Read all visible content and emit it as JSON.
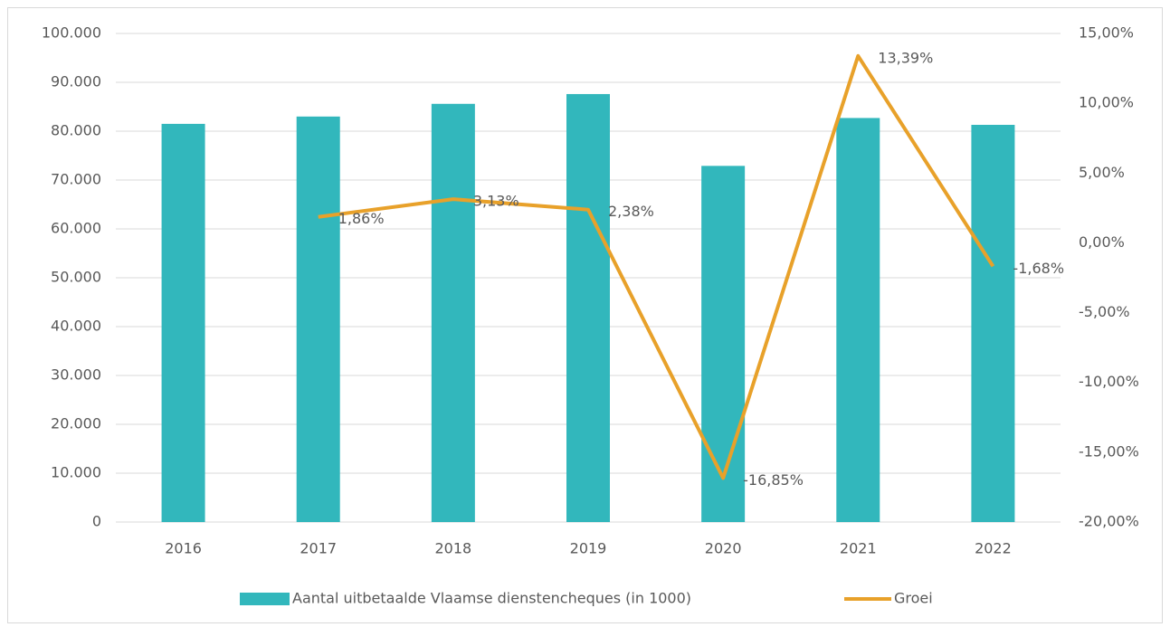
{
  "chart_data": {
    "type": "bar",
    "categories": [
      "2016",
      "2017",
      "2018",
      "2019",
      "2020",
      "2021",
      "2022"
    ],
    "series": [
      {
        "name": "Aantal uitbetaalde Vlaamse dienstencheques (in 1000)",
        "color": "#32b7bc",
        "type": "bar",
        "values": [
          81500,
          83000,
          85600,
          87600,
          72900,
          82700,
          81300
        ]
      },
      {
        "name": "Groei",
        "color": "#e8a12a",
        "type": "line",
        "axis": "y2",
        "values": [
          null,
          1.86,
          3.13,
          2.38,
          -16.85,
          13.39,
          -1.68
        ],
        "value_labels": [
          null,
          "1,86%",
          "3,13%",
          "2,38%",
          "-16,85%",
          "13,39%",
          "-1,68%"
        ]
      }
    ],
    "ylim": [
      0,
      100000
    ],
    "yticks": [
      0,
      {
        "value": 10000,
        "label": "10.000"
      },
      {
        "value": 20000,
        "label": "20.000"
      },
      {
        "value": 30000,
        "label": "30.000"
      },
      {
        "value": 40000,
        "label": "40.000"
      },
      {
        "value": 50000,
        "label": "50.000"
      },
      {
        "value": 60000,
        "label": "60.000"
      },
      {
        "value": 70000,
        "label": "70.000"
      },
      {
        "value": 80000,
        "label": "80.000"
      },
      {
        "value": 90000,
        "label": "90.000"
      },
      {
        "value": 100000,
        "label": "100.000"
      }
    ],
    "y2lim": [
      -20,
      15
    ],
    "y2ticks": [
      {
        "value": -20,
        "label": "-20,00%"
      },
      {
        "value": -15,
        "label": "-15,00%"
      },
      {
        "value": -10,
        "label": "-10,00%"
      },
      {
        "value": -5,
        "label": "-5,00%"
      },
      {
        "value": 0,
        "label": "0,00%"
      },
      {
        "value": 5,
        "label": "5,00%"
      },
      {
        "value": 10,
        "label": "10,00%"
      },
      {
        "value": 15,
        "label": "15,00%"
      }
    ],
    "grid": true,
    "legend": "bottom"
  }
}
